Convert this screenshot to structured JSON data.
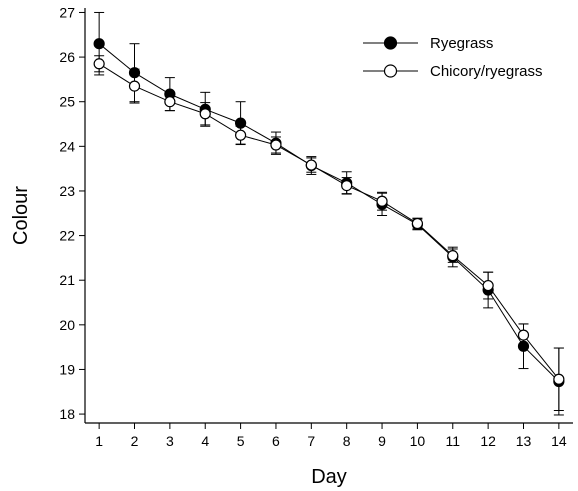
{
  "chart_data": {
    "type": "line",
    "xlabel": "Day",
    "ylabel": "Colour",
    "x": [
      1,
      2,
      3,
      4,
      5,
      6,
      7,
      8,
      9,
      10,
      11,
      12,
      13,
      14
    ],
    "xlim": [
      0.6,
      14.4
    ],
    "ylim": [
      17.8,
      27.1
    ],
    "yticks": [
      18,
      19,
      20,
      21,
      22,
      23,
      24,
      25,
      26,
      27
    ],
    "xticks": [
      1,
      2,
      3,
      4,
      5,
      6,
      7,
      8,
      9,
      10,
      11,
      12,
      13,
      14
    ],
    "grid": false,
    "legend_position": "top-right",
    "series": [
      {
        "name": "Ryegrass",
        "marker": "filled-circle",
        "color": "#000000",
        "values": [
          26.3,
          25.65,
          25.17,
          24.83,
          24.52,
          24.07,
          23.57,
          23.18,
          22.7,
          22.25,
          21.52,
          20.78,
          19.52,
          18.73
        ],
        "errors": [
          0.7,
          0.65,
          0.37,
          0.38,
          0.48,
          0.25,
          0.2,
          0.25,
          0.25,
          0.12,
          0.22,
          0.4,
          0.5,
          0.75
        ]
      },
      {
        "name": "Chicory/ryegrass",
        "marker": "open-circle",
        "color": "#000000",
        "values": [
          25.85,
          25.35,
          25.0,
          24.73,
          24.25,
          24.03,
          23.58,
          23.12,
          22.77,
          22.27,
          21.55,
          20.88,
          19.77,
          18.78
        ],
        "errors": [
          0.18,
          0.38,
          0.2,
          0.25,
          0.2,
          0.18,
          0.16,
          0.18,
          0.2,
          0.12,
          0.15,
          0.3,
          0.25,
          0.7
        ]
      }
    ]
  }
}
